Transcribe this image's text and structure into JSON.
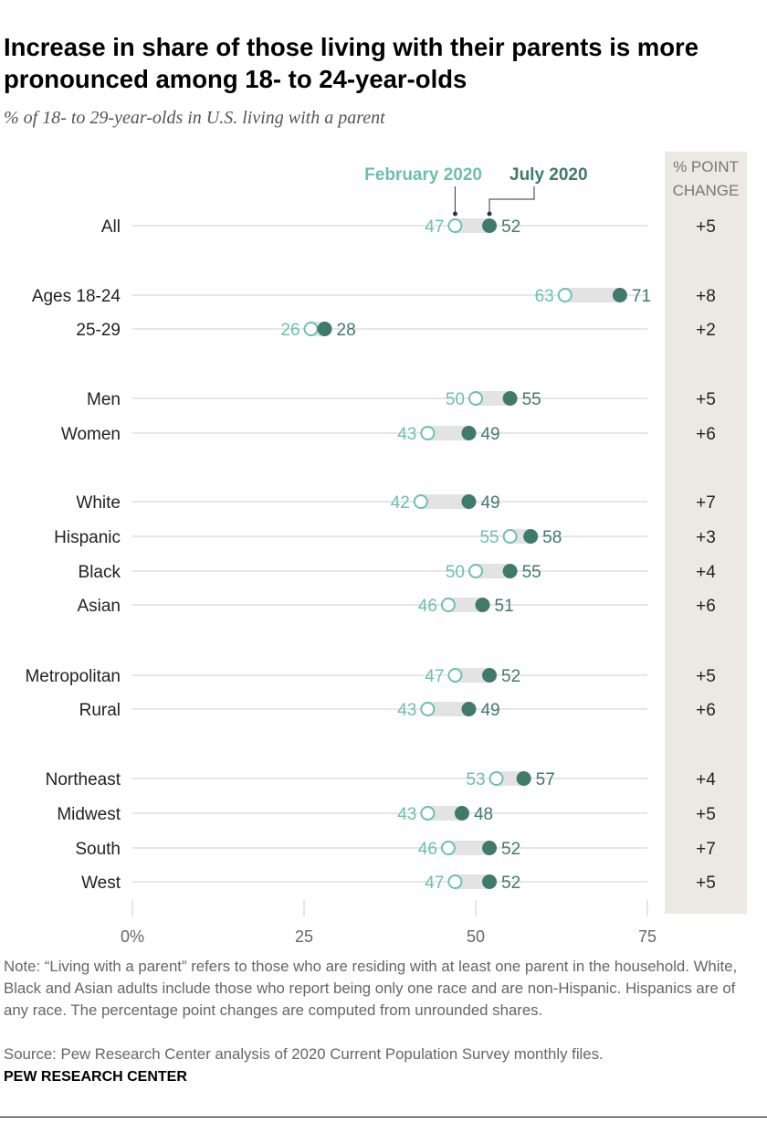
{
  "title": "Increase in share of those living with their parents is more pronounced among 18- to 24-year-olds",
  "subtitle": "% of 18- to 29-year-olds in U.S. living with a parent",
  "chart_data": {
    "type": "dot-plot",
    "series": [
      {
        "name": "February 2020",
        "color": "#6dbfb0",
        "marker": "open-circle"
      },
      {
        "name": "July 2020",
        "color": "#407a6b",
        "marker": "filled-circle"
      }
    ],
    "change_header": "% POINT CHANGE",
    "change_header_lines": [
      "% POINT",
      "CHANGE"
    ],
    "xlim": [
      0,
      75
    ],
    "x_ticks": [
      "0%",
      "25",
      "50",
      "75"
    ],
    "x_tick_values": [
      0,
      25,
      50,
      75
    ],
    "rows": [
      {
        "label": "All",
        "feb": 47,
        "jul": 52,
        "change": "+5",
        "group": 0
      },
      {
        "label": "Ages 18-24",
        "feb": 63,
        "jul": 71,
        "change": "+8",
        "group": 1
      },
      {
        "label": "25-29",
        "feb": 26,
        "jul": 28,
        "change": "+2",
        "group": 1
      },
      {
        "label": "Men",
        "feb": 50,
        "jul": 55,
        "change": "+5",
        "group": 2
      },
      {
        "label": "Women",
        "feb": 43,
        "jul": 49,
        "change": "+6",
        "group": 2
      },
      {
        "label": "White",
        "feb": 42,
        "jul": 49,
        "change": "+7",
        "group": 3
      },
      {
        "label": "Hispanic",
        "feb": 55,
        "jul": 58,
        "change": "+3",
        "group": 3
      },
      {
        "label": "Black",
        "feb": 50,
        "jul": 55,
        "change": "+4",
        "group": 3
      },
      {
        "label": "Asian",
        "feb": 46,
        "jul": 51,
        "change": "+6",
        "group": 3
      },
      {
        "label": "Metropolitan",
        "feb": 47,
        "jul": 52,
        "change": "+5",
        "group": 4
      },
      {
        "label": "Rural",
        "feb": 43,
        "jul": 49,
        "change": "+6",
        "group": 4
      },
      {
        "label": "Northeast",
        "feb": 53,
        "jul": 57,
        "change": "+4",
        "group": 5
      },
      {
        "label": "Midwest",
        "feb": 43,
        "jul": 48,
        "change": "+5",
        "group": 5
      },
      {
        "label": "South",
        "feb": 46,
        "jul": 52,
        "change": "+7",
        "group": 5
      },
      {
        "label": "West",
        "feb": 47,
        "jul": 52,
        "change": "+5",
        "group": 5
      }
    ]
  },
  "note": "Note: “Living with a parent” refers to those who are residing with at least one parent in the household. White, Black and Asian adults include those who report being only one race and are non-Hispanic. Hispanics are of any race. The percentage point changes are computed from unrounded shares.",
  "source": "Source: Pew Research Center analysis of 2020 Current Population Survey monthly files.",
  "brand": "PEW RESEARCH CENTER"
}
